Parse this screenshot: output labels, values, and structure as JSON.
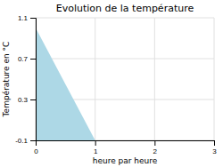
{
  "chart_data": {
    "type": "area",
    "title": "Evolution de la température",
    "xlabel": "heure par heure",
    "ylabel": "Température en °C",
    "x": [
      0,
      0,
      1,
      1
    ],
    "values": [
      -0.1,
      1.0,
      -0.1,
      -0.1
    ],
    "color": "#add8e6",
    "xlim": [
      0,
      3
    ],
    "ylim": [
      -0.1,
      1.1
    ],
    "xticks": [
      0,
      1,
      2,
      3
    ],
    "yticks": [
      -0.1,
      0.3,
      0.7,
      1.1
    ],
    "grid": true
  }
}
